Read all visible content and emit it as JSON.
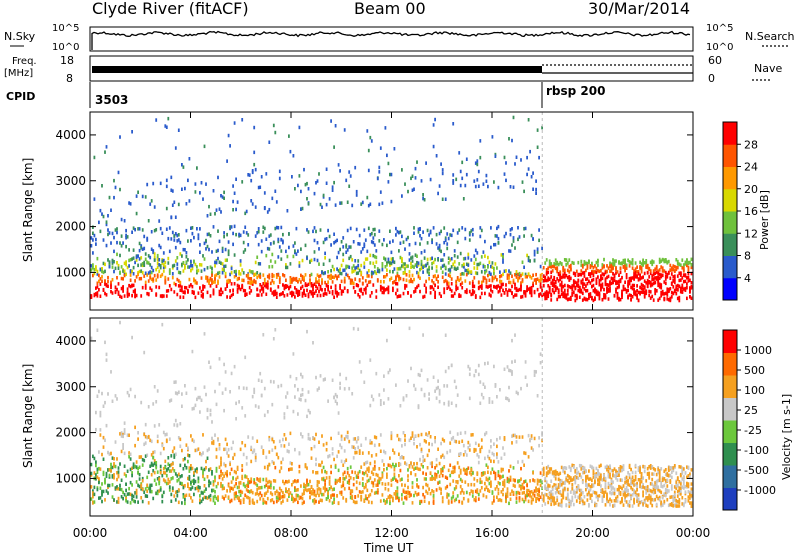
{
  "header": {
    "title": "Clyde River (fitACF)",
    "beam": "Beam 00",
    "date": "30/Mar/2014"
  },
  "top_panels": {
    "nsky_label": "N.Sky",
    "nsky_ticks": [
      "10^5",
      "10^0"
    ],
    "nsearch_label": "N.Search",
    "nsearch_ticks": [
      "10^5",
      "10^0"
    ],
    "freq_label": "Freq.",
    "freq_unit": "[MHz]",
    "freq_ticks": [
      "18",
      "8"
    ],
    "nave_label": "Nave",
    "nave_ticks": [
      "60",
      "0"
    ],
    "cpid_label": "CPID",
    "cpid_values": [
      "3503",
      "rbsp 200"
    ]
  },
  "chart_data": [
    {
      "type": "heatmap",
      "quantity": "Power",
      "ylabel": "Slant Range [km]",
      "yticks": [
        "4000",
        "3000",
        "2000",
        "1000"
      ],
      "ylim": [
        180,
        4500
      ],
      "colorbar_label": "Power [dB]",
      "colorbar_ticks": [
        "28",
        "24",
        "20",
        "16",
        "12",
        "8",
        "4"
      ],
      "colorscale": [
        "#0000ff",
        "#2a5bcc",
        "#3a8f5a",
        "#6fc13c",
        "#d8d800",
        "#ff9900",
        "#ff5500",
        "#ff0000"
      ],
      "x_range_hours": [
        0,
        24
      ]
    },
    {
      "type": "heatmap",
      "quantity": "Velocity",
      "ylabel": "Slant Range [km]",
      "yticks": [
        "4000",
        "3000",
        "2000",
        "1000"
      ],
      "ylim": [
        180,
        4500
      ],
      "colorbar_label": "Velocity [m s-1]",
      "colorbar_ticks": [
        "1000",
        "500",
        "100",
        "25",
        "-25",
        "-100",
        "-500",
        "-1000"
      ],
      "colorscale": [
        "#1e3fbf",
        "#2f6fa0",
        "#2f8f4f",
        "#6cc83c",
        "#c8c8c8",
        "#f5a020",
        "#ff6a00",
        "#ff0000"
      ],
      "x_range_hours": [
        0,
        24
      ]
    }
  ],
  "xaxis": {
    "label": "Time UT",
    "ticks": [
      "00:00",
      "04:00",
      "08:00",
      "12:00",
      "16:00",
      "20:00",
      "00:00"
    ]
  },
  "colors": {
    "power_red": "#ff0000",
    "power_orange": "#ff7700",
    "velocity_gray": "#c8c8c8",
    "velocity_orange": "#f5a020"
  }
}
